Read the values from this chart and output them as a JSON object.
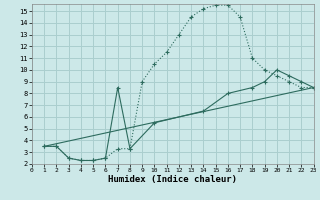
{
  "xlabel": "Humidex (Indice chaleur)",
  "bg_color": "#cce8e8",
  "line_color": "#2d6b5e",
  "grid_color": "#aacece",
  "xlim": [
    0,
    23
  ],
  "ylim": [
    2,
    15.6
  ],
  "xticks": [
    0,
    1,
    2,
    3,
    4,
    5,
    6,
    7,
    8,
    9,
    10,
    11,
    12,
    13,
    14,
    15,
    16,
    17,
    18,
    19,
    20,
    21,
    22,
    23
  ],
  "yticks": [
    2,
    3,
    4,
    5,
    6,
    7,
    8,
    9,
    10,
    11,
    12,
    13,
    14,
    15
  ],
  "curve1_x": [
    1,
    2,
    3,
    4,
    5,
    6,
    7,
    8,
    9,
    10,
    11,
    12,
    13,
    14,
    15,
    16,
    17,
    18,
    19,
    20,
    21,
    22,
    23
  ],
  "curve1_y": [
    3.5,
    3.5,
    2.5,
    2.3,
    2.3,
    2.5,
    3.3,
    3.3,
    9.0,
    10.5,
    11.5,
    13.0,
    14.5,
    15.2,
    15.5,
    15.5,
    14.5,
    11.0,
    10.0,
    9.5,
    9.0,
    8.5,
    8.5
  ],
  "curve2_x": [
    1,
    2,
    3,
    4,
    5,
    6,
    7,
    8,
    10,
    14,
    16,
    18,
    19,
    20,
    21,
    22,
    23
  ],
  "curve2_y": [
    3.5,
    3.5,
    2.5,
    2.3,
    2.3,
    2.5,
    8.5,
    3.3,
    5.5,
    6.5,
    8.0,
    8.5,
    9.0,
    10.0,
    9.5,
    9.0,
    8.5
  ],
  "curve3_x": [
    1,
    23
  ],
  "curve3_y": [
    3.5,
    8.5
  ]
}
